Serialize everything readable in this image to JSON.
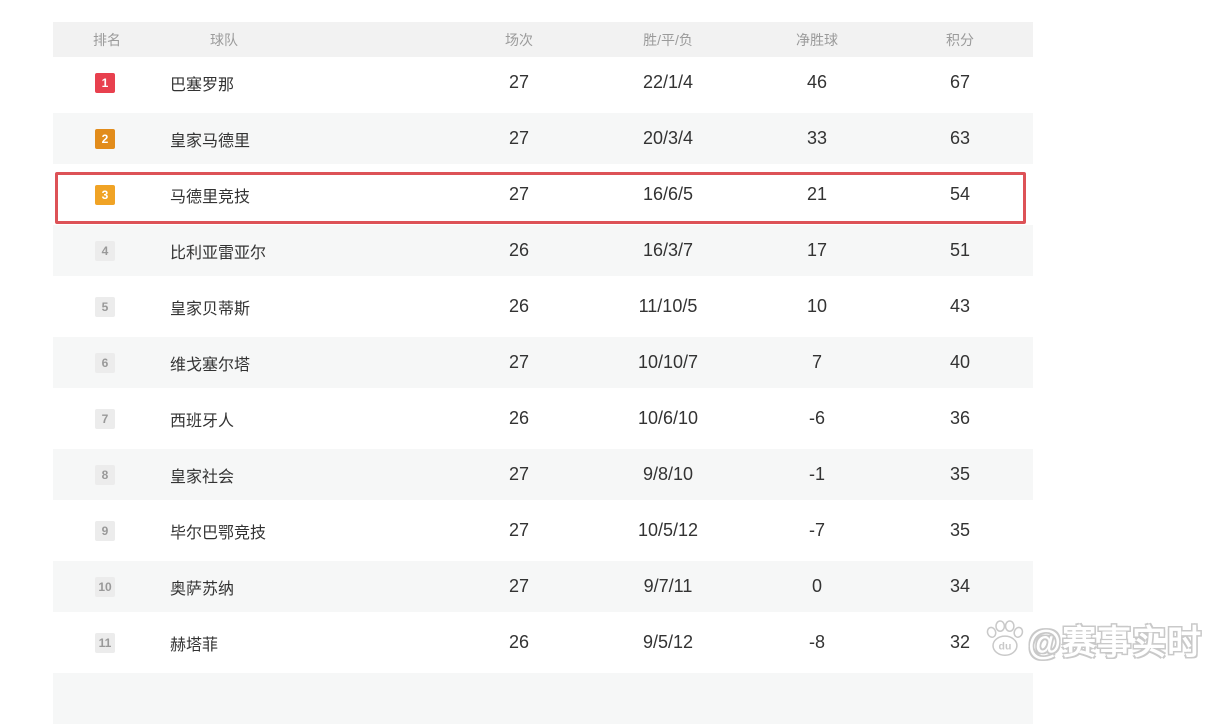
{
  "page": {
    "background": "#ffffff"
  },
  "table": {
    "columns": [
      {
        "key": "rank",
        "label": "排名"
      },
      {
        "key": "team",
        "label": "球队"
      },
      {
        "key": "played",
        "label": "场次"
      },
      {
        "key": "wdl",
        "label": "胜/平/负"
      },
      {
        "key": "gd",
        "label": "净胜球"
      },
      {
        "key": "points",
        "label": "积分"
      }
    ],
    "rows": [
      {
        "rank": "1",
        "team": "巴塞罗那",
        "played": "27",
        "wdl": "22/1/4",
        "gd": "46",
        "points": "67",
        "badge": "red",
        "highlighted": false
      },
      {
        "rank": "2",
        "team": "皇家马德里",
        "played": "27",
        "wdl": "20/3/4",
        "gd": "33",
        "points": "63",
        "badge": "orange",
        "highlighted": false
      },
      {
        "rank": "3",
        "team": "马德里竞技",
        "played": "27",
        "wdl": "16/6/5",
        "gd": "21",
        "points": "54",
        "badge": "amber",
        "highlighted": true
      },
      {
        "rank": "4",
        "team": "比利亚雷亚尔",
        "played": "26",
        "wdl": "16/3/7",
        "gd": "17",
        "points": "51",
        "badge": "gray",
        "highlighted": false
      },
      {
        "rank": "5",
        "team": "皇家贝蒂斯",
        "played": "26",
        "wdl": "11/10/5",
        "gd": "10",
        "points": "43",
        "badge": "gray",
        "highlighted": false
      },
      {
        "rank": "6",
        "team": "维戈塞尔塔",
        "played": "27",
        "wdl": "10/10/7",
        "gd": "7",
        "points": "40",
        "badge": "gray",
        "highlighted": false
      },
      {
        "rank": "7",
        "team": "西班牙人",
        "played": "26",
        "wdl": "10/6/10",
        "gd": "-6",
        "points": "36",
        "badge": "gray",
        "highlighted": false
      },
      {
        "rank": "8",
        "team": "皇家社会",
        "played": "27",
        "wdl": "9/8/10",
        "gd": "-1",
        "points": "35",
        "badge": "gray",
        "highlighted": false
      },
      {
        "rank": "9",
        "team": "毕尔巴鄂竞技",
        "played": "27",
        "wdl": "10/5/12",
        "gd": "-7",
        "points": "35",
        "badge": "gray",
        "highlighted": false
      },
      {
        "rank": "10",
        "team": "奥萨苏纳",
        "played": "27",
        "wdl": "9/7/11",
        "gd": "0",
        "points": "34",
        "badge": "gray",
        "highlighted": false
      },
      {
        "rank": "11",
        "team": "赫塔菲",
        "played": "26",
        "wdl": "9/5/12",
        "gd": "-8",
        "points": "32",
        "badge": "gray",
        "highlighted": false
      }
    ]
  },
  "watermark": {
    "handle": "@赛事实时",
    "paw_label": "du"
  },
  "colors": {
    "badge_red": "#e8404e",
    "badge_orange": "#e28c1b",
    "badge_amber": "#f0a325",
    "badge_gray_bg": "#ececec",
    "badge_gray_text": "#999999",
    "highlight_border": "#dd5257",
    "header_bg": "#f2f2f2",
    "row_alt_bg": "#f6f7f7"
  }
}
